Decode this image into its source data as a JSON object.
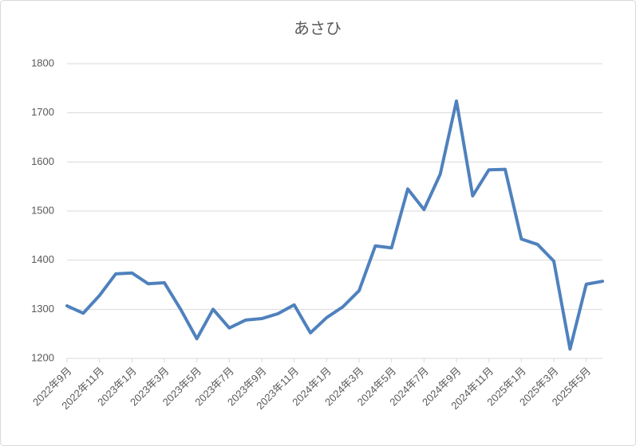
{
  "chart_data": {
    "type": "line",
    "title": "あさひ",
    "categories": [
      "2022年9月",
      null,
      "2022年11月",
      null,
      "2023年1月",
      null,
      "2023年3月",
      null,
      "2023年5月",
      null,
      "2023年7月",
      null,
      "2023年9月",
      null,
      "2023年11月",
      null,
      "2024年1月",
      null,
      "2024年3月",
      null,
      "2024年5月",
      null,
      "2024年7月",
      null,
      "2024年9月",
      null,
      "2024年11月",
      null,
      "2025年1月",
      null,
      "2025年3月",
      null,
      "2025年5月",
      null
    ],
    "series": [
      {
        "name": "あさひ",
        "color": "#4f81bd",
        "values": [
          1307,
          1292,
          1328,
          1372,
          1374,
          1352,
          1354,
          1300,
          1240,
          1300,
          1262,
          1278,
          1281,
          1291,
          1309,
          1252,
          1283,
          1305,
          1338,
          1429,
          1425,
          1545,
          1503,
          1575,
          1724,
          1531,
          1584,
          1585,
          1443,
          1432,
          1398,
          1219,
          1351,
          1357
        ]
      }
    ],
    "ylim": [
      1200,
      1800
    ],
    "yticks": [
      1200,
      1300,
      1400,
      1500,
      1600,
      1700,
      1800
    ],
    "grid": true
  }
}
